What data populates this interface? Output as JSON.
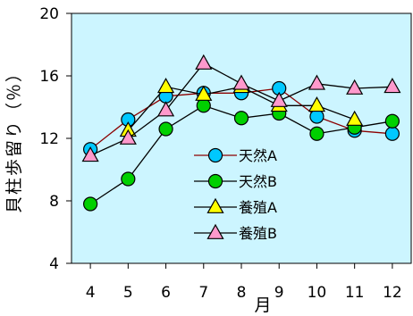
{
  "chart_data": {
    "type": "line",
    "title": "",
    "xlabel": "月",
    "ylabel": "貝柱歩留り（％）",
    "x": [
      4,
      5,
      6,
      7,
      8,
      9,
      10,
      11,
      12
    ],
    "xlim": [
      3.5,
      12.5
    ],
    "ylim": [
      4,
      20
    ],
    "yticks": [
      4,
      8,
      12,
      16,
      20
    ],
    "grid": false,
    "plot_background": "#ccf5ff",
    "legend_position": "lower-right",
    "series": [
      {
        "name": "天然A",
        "marker": "circle",
        "color": "#00c8ff",
        "line_color": "#8b0000",
        "values": [
          11.3,
          13.2,
          14.7,
          14.9,
          14.9,
          15.2,
          13.4,
          12.5,
          12.3
        ]
      },
      {
        "name": "天然B",
        "marker": "circle",
        "color": "#00d000",
        "line_color": "#000000",
        "values": [
          7.8,
          9.4,
          12.6,
          14.1,
          13.3,
          13.6,
          12.3,
          12.7,
          13.1
        ]
      },
      {
        "name": "養殖A",
        "marker": "triangle",
        "color": "#ffff00",
        "line_color": "#000000",
        "values": [
          null,
          12.5,
          15.3,
          14.8,
          15.3,
          14.1,
          14.1,
          13.2,
          null
        ]
      },
      {
        "name": "養殖B",
        "marker": "triangle",
        "color": "#ff99cc",
        "line_color": "#000000",
        "values": [
          10.9,
          12.0,
          13.8,
          16.8,
          15.5,
          14.4,
          15.5,
          15.2,
          15.3
        ]
      }
    ]
  }
}
